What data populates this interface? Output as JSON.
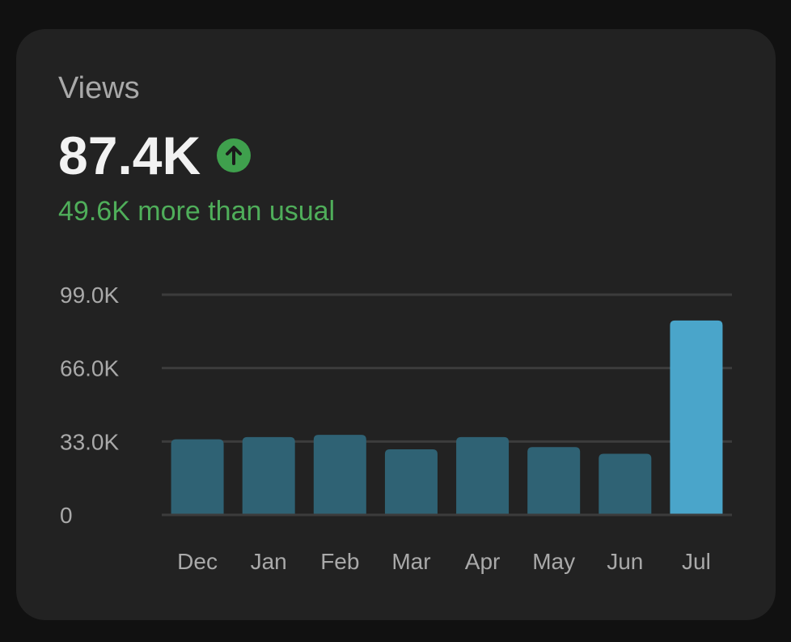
{
  "card": {
    "title": "Views",
    "value": "87.4K",
    "trend_icon": "arrow-up-circle-icon",
    "delta_text": "49.6K more than usual"
  },
  "colors": {
    "background": "#111111",
    "card": "#222222",
    "bar": "#2f6274",
    "bar_highlight": "#4aa5ca",
    "grid": "#3c3c3c",
    "positive": "#4fae5a"
  },
  "chart_data": {
    "type": "bar",
    "categories": [
      "Dec",
      "Jan",
      "Feb",
      "Mar",
      "Apr",
      "May",
      "Jun",
      "Jul"
    ],
    "values": [
      34000,
      35000,
      36000,
      29500,
      35000,
      30500,
      27500,
      87400
    ],
    "highlight_index": 7,
    "ylim": [
      0,
      99000
    ],
    "yticks": [
      0,
      33000,
      66000,
      99000
    ],
    "ytick_labels": [
      "0",
      "33.0K",
      "66.0K",
      "99.0K"
    ],
    "grid": true,
    "title": "",
    "xlabel": "",
    "ylabel": ""
  }
}
